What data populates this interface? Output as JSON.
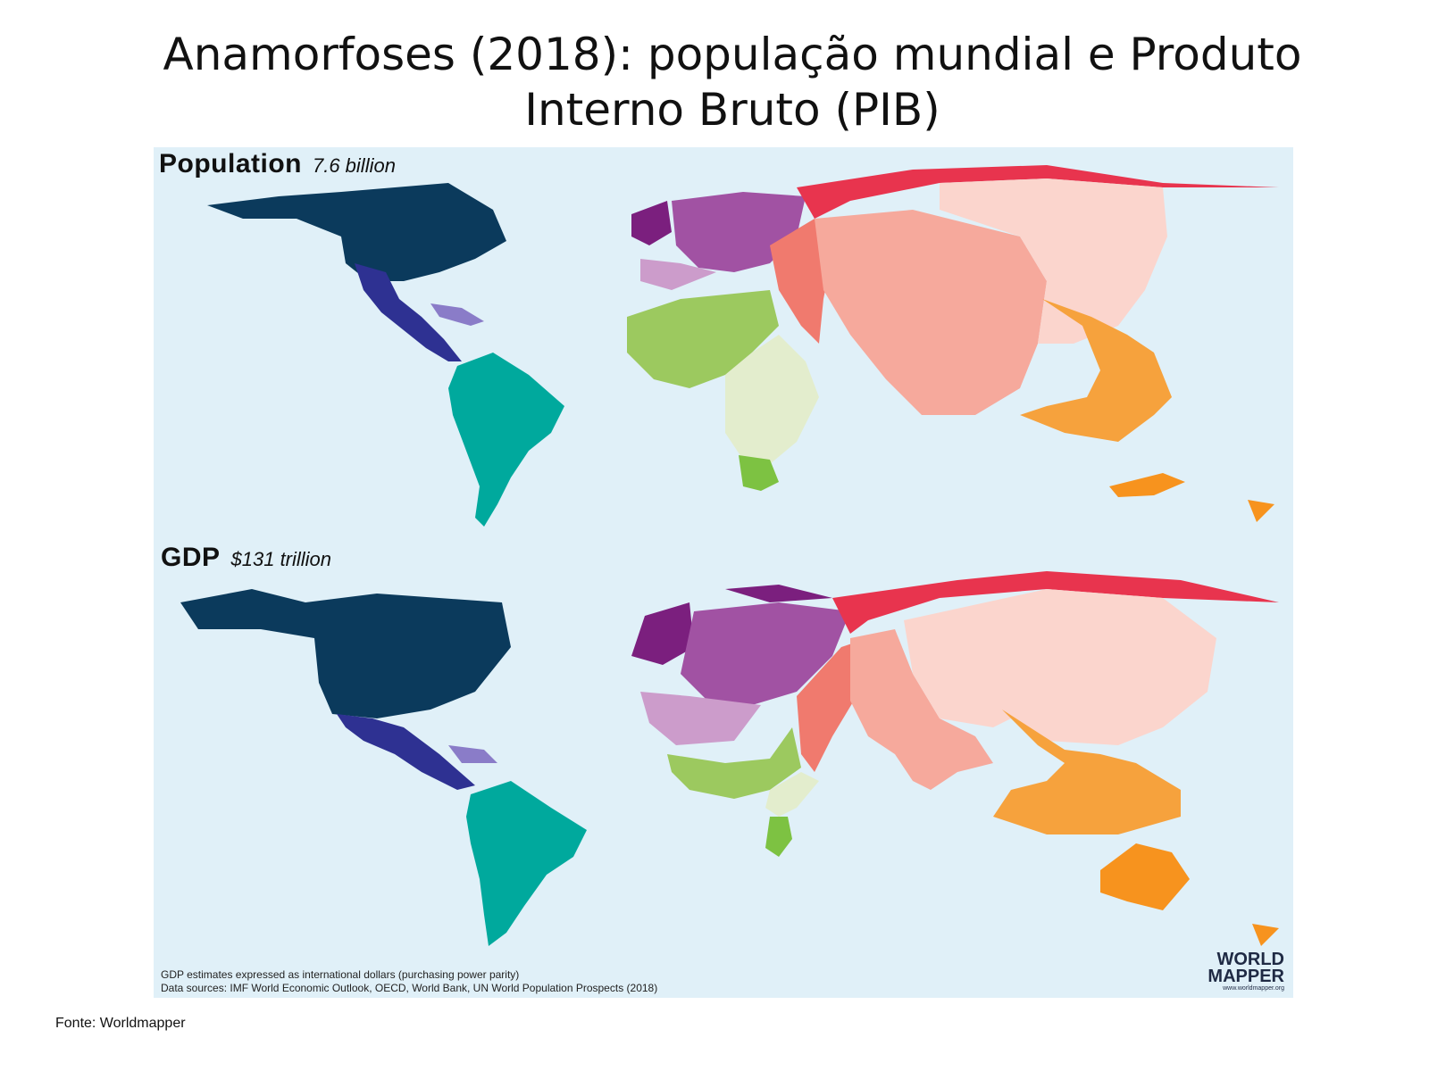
{
  "slide": {
    "title": "Anamorfoses (2018): população mundial e Produto Interno Bruto (PIB)",
    "source": "Fonte: Worldmapper"
  },
  "map": {
    "panels": [
      {
        "label": "Population",
        "value": "7.6 billion"
      },
      {
        "label": "GDP",
        "value": "$131 trillion"
      }
    ],
    "notes": [
      "GDP estimates expressed as international dollars (purchasing power parity)",
      "Data sources: IMF World Economic Outlook, OECD, World Bank, UN World Population Prospects (2018)"
    ],
    "logo": {
      "line1": "WORLD",
      "line2": "MAPPER",
      "url": "www.worldmapper.org"
    },
    "colors": {
      "ocean": "#e0f0f8",
      "north_america": "#0b3a5c",
      "central_america": "#2e3192",
      "caribbean": "#8a7cc8",
      "south_america": "#00a99d",
      "western_europe": "#7b1f7e",
      "europe": "#a152a3",
      "eastern_europe": "#cc9ccb",
      "russia": "#e8344e",
      "middle_east": "#f07a6e",
      "south_asia": "#f6a99c",
      "east_asia": "#fbd5cd",
      "southeast_asia": "#f6a23d",
      "oceania": "#f7931e",
      "north_africa": "#9cc95f",
      "sub_saharan_africa": "#e3edcd",
      "southern_africa": "#7dc242"
    }
  }
}
